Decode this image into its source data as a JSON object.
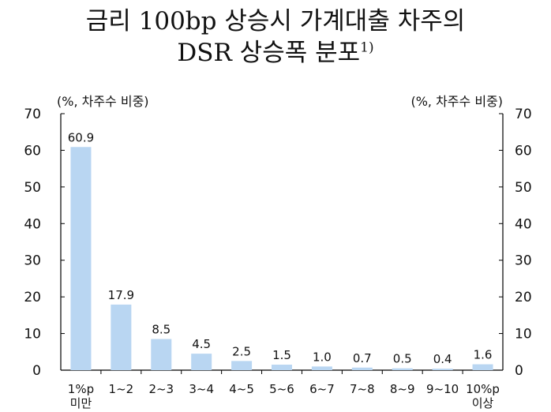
{
  "title": {
    "line1": "금리 100bp 상승시 가계대출 차주의",
    "line2": "DSR 상승폭 분포",
    "footnote_mark": "1)"
  },
  "colors": {
    "bar": "#B9D6F2",
    "axis": "#000000",
    "text": "#111111"
  },
  "chart_data": {
    "type": "bar",
    "categories": [
      [
        "1%p",
        "미만"
      ],
      [
        "1~2"
      ],
      [
        "2~3"
      ],
      [
        "3~4"
      ],
      [
        "4~5"
      ],
      [
        "5~6"
      ],
      [
        "6~7"
      ],
      [
        "7~8"
      ],
      [
        "8~9"
      ],
      [
        "9~10"
      ],
      [
        "10%p",
        "이상"
      ]
    ],
    "values": [
      60.9,
      17.9,
      8.5,
      4.5,
      2.5,
      1.5,
      1.0,
      0.7,
      0.5,
      0.4,
      1.6
    ],
    "value_labels": [
      "60.9",
      "17.9",
      "8.5",
      "4.5",
      "2.5",
      "1.5",
      "1.0",
      "0.7",
      "0.5",
      "0.4",
      "1.6"
    ],
    "ylim": [
      0,
      70
    ],
    "yticks": [
      0,
      10,
      20,
      30,
      40,
      50,
      60,
      70
    ],
    "left_unit_label": "(%, 차주수 비중)",
    "right_unit_label": "(%, 차주수 비중)",
    "grid": false
  }
}
